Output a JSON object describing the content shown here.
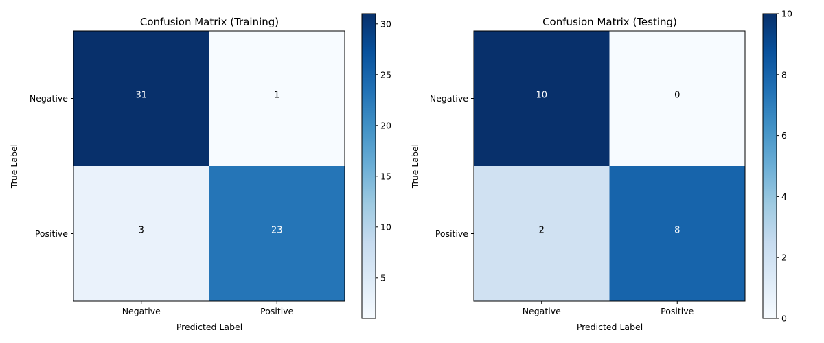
{
  "chart_data": [
    {
      "type": "heatmap",
      "title": "Confusion Matrix (Training)",
      "xlabel": "Predicted Label",
      "ylabel": "True Label",
      "x_categories": [
        "Negative",
        "Positive"
      ],
      "y_categories": [
        "Negative",
        "Positive"
      ],
      "values": [
        [
          31,
          1
        ],
        [
          3,
          23
        ]
      ],
      "colormap": "Blues",
      "colorbar": {
        "min": 1,
        "max": 31,
        "ticks": [
          "5",
          "10",
          "15",
          "20",
          "25",
          "30"
        ]
      },
      "grid": false
    },
    {
      "type": "heatmap",
      "title": "Confusion Matrix (Testing)",
      "xlabel": "Predicted Label",
      "ylabel": "True Label",
      "x_categories": [
        "Negative",
        "Positive"
      ],
      "y_categories": [
        "Negative",
        "Positive"
      ],
      "values": [
        [
          10,
          0
        ],
        [
          2,
          8
        ]
      ],
      "colormap": "Blues",
      "colorbar": {
        "min": 0,
        "max": 10,
        "ticks": [
          "0",
          "2",
          "4",
          "6",
          "8",
          "10"
        ]
      },
      "grid": false
    }
  ]
}
